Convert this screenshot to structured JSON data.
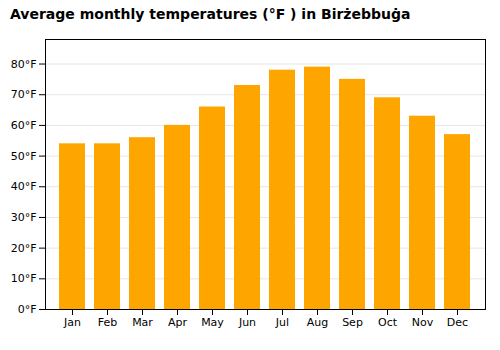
{
  "chart_data": {
    "type": "bar",
    "title": "Average monthly temperatures (°F ) in Birżebbuġa",
    "categories": [
      "Jan",
      "Feb",
      "Mar",
      "Apr",
      "May",
      "Jun",
      "Jul",
      "Aug",
      "Sep",
      "Oct",
      "Nov",
      "Dec"
    ],
    "values": [
      54,
      54,
      56,
      60,
      66,
      73,
      78,
      79,
      75,
      69,
      63,
      57
    ],
    "color": "#FFA500",
    "ylim": [
      0,
      88
    ],
    "yticks": [
      {
        "value": 0,
        "label": "0°F"
      },
      {
        "value": 10,
        "label": "10°F"
      },
      {
        "value": 20,
        "label": "20°F"
      },
      {
        "value": 30,
        "label": "30°F"
      },
      {
        "value": 40,
        "label": "40°F"
      },
      {
        "value": 50,
        "label": "50°F"
      },
      {
        "value": 60,
        "label": "60°F"
      },
      {
        "value": 70,
        "label": "70°F"
      },
      {
        "value": 80,
        "label": "80°F"
      }
    ],
    "grid": true
  }
}
